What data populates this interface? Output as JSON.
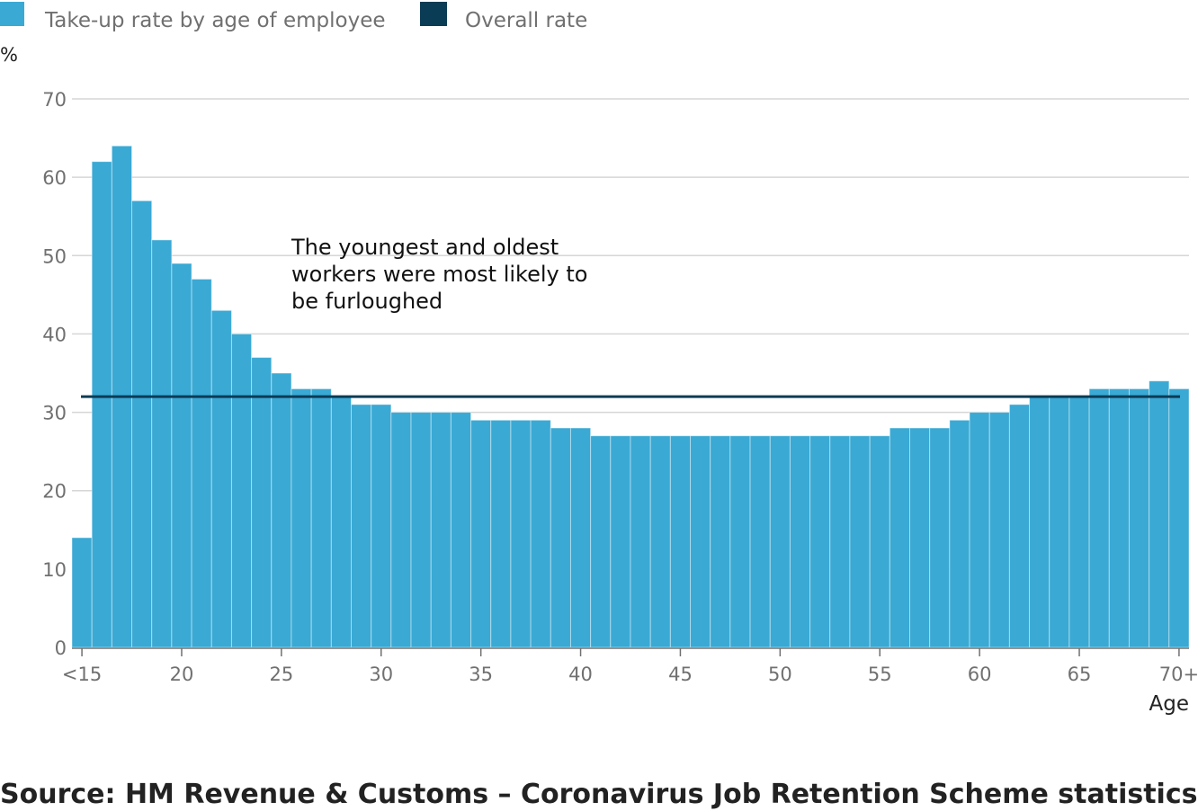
{
  "legend": {
    "series_label": "Take-up rate by age of employee",
    "overall_label": "Overall rate"
  },
  "y_unit_label": "%",
  "x_unit_label": "Age",
  "annotation": {
    "lines": [
      "The youngest and oldest",
      "workers were most likely to",
      "be furloughed"
    ]
  },
  "source": "Source: HM Revenue & Customs – Coronavirus Job Retention Scheme statistics",
  "colors": {
    "bar": "#3aa9d4",
    "bar_border": "#ffffff",
    "overall_line": "#0b3c55",
    "grid": "#d6d6d6",
    "axis": "#707070"
  },
  "chart_data": {
    "type": "bar",
    "title": "",
    "xlabel": "Age",
    "ylabel": "%",
    "ylim": [
      0,
      70
    ],
    "y_ticks": [
      0,
      10,
      20,
      30,
      40,
      50,
      60,
      70
    ],
    "x_tick_labels": [
      {
        "age": 15,
        "label": "<15"
      },
      {
        "age": 20,
        "label": "20"
      },
      {
        "age": 25,
        "label": "25"
      },
      {
        "age": 30,
        "label": "30"
      },
      {
        "age": 35,
        "label": "35"
      },
      {
        "age": 40,
        "label": "40"
      },
      {
        "age": 45,
        "label": "45"
      },
      {
        "age": 50,
        "label": "50"
      },
      {
        "age": 55,
        "label": "55"
      },
      {
        "age": 60,
        "label": "60"
      },
      {
        "age": 65,
        "label": "65"
      },
      {
        "age": 70,
        "label": "70+"
      }
    ],
    "categories": [
      "<15",
      "16",
      "17",
      "18",
      "19",
      "20",
      "21",
      "22",
      "23",
      "24",
      "25",
      "26",
      "27",
      "28",
      "29",
      "30",
      "31",
      "32",
      "33",
      "34",
      "35",
      "36",
      "37",
      "38",
      "39",
      "40",
      "41",
      "42",
      "43",
      "44",
      "45",
      "46",
      "47",
      "48",
      "49",
      "50",
      "51",
      "52",
      "53",
      "54",
      "55",
      "56",
      "57",
      "58",
      "59",
      "60",
      "61",
      "62",
      "63",
      "64",
      "65",
      "66",
      "67",
      "68",
      "69",
      "70+"
    ],
    "series": [
      {
        "name": "Take-up rate by age of employee",
        "values": [
          14,
          62,
          64,
          57,
          52,
          49,
          47,
          43,
          40,
          37,
          35,
          33,
          33,
          32,
          31,
          31,
          30,
          30,
          30,
          30,
          29,
          29,
          29,
          29,
          28,
          28,
          27,
          27,
          27,
          27,
          27,
          27,
          27,
          27,
          27,
          27,
          27,
          27,
          27,
          27,
          27,
          28,
          28,
          28,
          29,
          30,
          30,
          31,
          32,
          32,
          32,
          33,
          33,
          33,
          34,
          33
        ]
      }
    ],
    "overall_rate": {
      "name": "Overall rate",
      "value": 32
    },
    "grid": true,
    "legend_position": "top-left"
  }
}
